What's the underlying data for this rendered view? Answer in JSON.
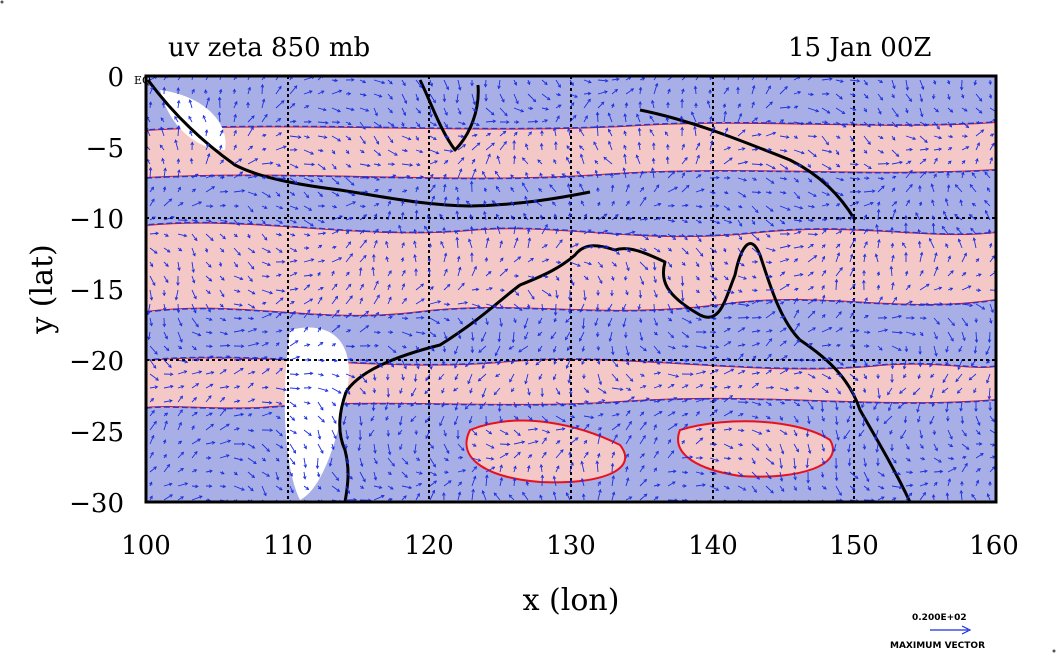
{
  "header": {
    "title": "uv zeta 850 mb",
    "timestamp": "15 Jan 00Z"
  },
  "map": {
    "eq_label": "EQ"
  },
  "axes": {
    "x": {
      "label": "x (lon)",
      "range": [
        100,
        160
      ],
      "ticks": [
        "100",
        "110",
        "120",
        "130",
        "140",
        "150",
        "160"
      ]
    },
    "y": {
      "label": "y (lat)",
      "range": [
        -30,
        0
      ],
      "ticks": [
        "0",
        "−5",
        "−10",
        "−15",
        "−20",
        "−25",
        "−30"
      ]
    }
  },
  "vector_legend": {
    "value": "0.200E+02",
    "label": "MAXIMUM VECTOR"
  },
  "colors": {
    "positive_fill": "#f5c8c8",
    "positive_contour": "#e8101e",
    "negative_fill": "#a7afe6",
    "negative_contour": "#2b35c8",
    "vectors": "#1a2ee0",
    "coast": "#000000"
  }
}
